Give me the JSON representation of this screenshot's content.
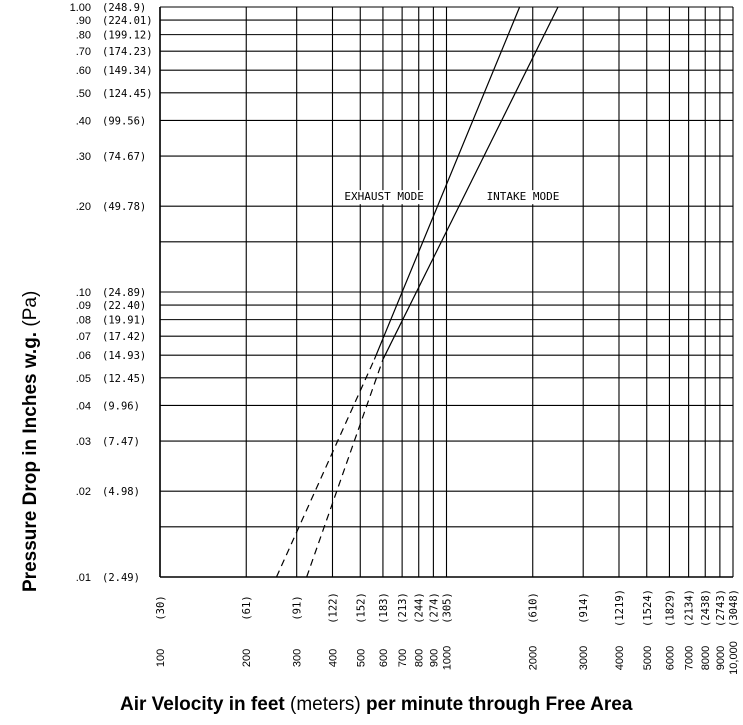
{
  "chart_data": {
    "type": "line",
    "x_scale": "log",
    "y_scale": "log",
    "xlim": [
      100,
      10000
    ],
    "ylim": [
      0.01,
      1.0
    ],
    "grid": true,
    "x_ticks": [
      {
        "ft": "100",
        "m": "(30)",
        "v": 100
      },
      {
        "ft": "200",
        "m": "(61)",
        "v": 200
      },
      {
        "ft": "300",
        "m": "(91)",
        "v": 300
      },
      {
        "ft": "400",
        "m": "(122)",
        "v": 400
      },
      {
        "ft": "500",
        "m": "(152)",
        "v": 500
      },
      {
        "ft": "600",
        "m": "(183)",
        "v": 600
      },
      {
        "ft": "700",
        "m": "(213)",
        "v": 700
      },
      {
        "ft": "800",
        "m": "(244)",
        "v": 800
      },
      {
        "ft": "900",
        "m": "(274)",
        "v": 900
      },
      {
        "ft": "1000",
        "m": "(305)",
        "v": 1000
      },
      {
        "ft": "2000",
        "m": "(610)",
        "v": 2000
      },
      {
        "ft": "3000",
        "m": "(914)",
        "v": 3000
      },
      {
        "ft": "4000",
        "m": "(1219)",
        "v": 4000
      },
      {
        "ft": "5000",
        "m": "(1524)",
        "v": 5000
      },
      {
        "ft": "6000",
        "m": "(1829)",
        "v": 6000
      },
      {
        "ft": "7000",
        "m": "(2134)",
        "v": 7000
      },
      {
        "ft": "8000",
        "m": "(2438)",
        "v": 8000
      },
      {
        "ft": "9000",
        "m": "(2743)",
        "v": 9000
      },
      {
        "ft": "10,000",
        "m": "(3048)",
        "v": 10000
      }
    ],
    "y_ticks": [
      {
        "in": "1.00",
        "pa": "(248.9)",
        "v": 1.0
      },
      {
        "in": ".90",
        "pa": "(224.01)",
        "v": 0.9
      },
      {
        "in": ".80",
        "pa": "(199.12)",
        "v": 0.8
      },
      {
        "in": ".70",
        "pa": "(174.23)",
        "v": 0.7
      },
      {
        "in": ".60",
        "pa": "(149.34)",
        "v": 0.6
      },
      {
        "in": ".50",
        "pa": "(124.45)",
        "v": 0.5
      },
      {
        "in": ".40",
        "pa": "(99.56)",
        "v": 0.4
      },
      {
        "in": ".30",
        "pa": "(74.67)",
        "v": 0.3
      },
      {
        "in": ".20",
        "pa": "(49.78)",
        "v": 0.2
      },
      {
        "in": ".10",
        "pa": "(24.89)",
        "v": 0.1
      },
      {
        "in": ".09",
        "pa": "(22.40)",
        "v": 0.09
      },
      {
        "in": ".08",
        "pa": "(19.91)",
        "v": 0.08
      },
      {
        "in": ".07",
        "pa": "(17.42)",
        "v": 0.07
      },
      {
        "in": ".06",
        "pa": "(14.93)",
        "v": 0.06
      },
      {
        "in": ".05",
        "pa": "(12.45)",
        "v": 0.05
      },
      {
        "in": ".04",
        "pa": "(9.96)",
        "v": 0.04
      },
      {
        "in": ".03",
        "pa": "(7.47)",
        "v": 0.03
      },
      {
        "in": ".02",
        "pa": "(4.98)",
        "v": 0.02
      },
      {
        "in": ".01",
        "pa": "(2.49)",
        "v": 0.01
      }
    ],
    "y_minor_gridlines": [
      0.15,
      0.015
    ],
    "series": [
      {
        "name": "EXHAUST MODE",
        "solid_points": [
          [
            560,
            0.058
          ],
          [
            1800,
            1.0
          ]
        ],
        "dashed_points": [
          [
            255,
            0.01
          ],
          [
            560,
            0.058
          ]
        ]
      },
      {
        "name": "INTAKE MODE",
        "solid_points": [
          [
            600,
            0.058
          ],
          [
            2450,
            1.0
          ]
        ],
        "dashed_points": [
          [
            325,
            0.01
          ],
          [
            600,
            0.058
          ]
        ]
      }
    ],
    "annotations": [
      {
        "text": "EXHAUST MODE",
        "x": 440,
        "y": 0.21
      },
      {
        "text": "INTAKE MODE",
        "x": 1380,
        "y": 0.21
      }
    ],
    "xlabel": {
      "part1": "Air Velocity in feet",
      "part2": " (meters) ",
      "part3": "per minute through Free Area"
    },
    "ylabel": {
      "part1": "Pressure Drop in Inches w.g.",
      "part2": " (Pa)"
    }
  }
}
